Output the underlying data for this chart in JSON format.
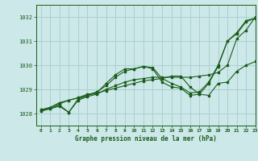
{
  "title": "Graphe pression niveau de la mer (hPa)",
  "bg_color": "#cce8e8",
  "grid_color": "#aad0d0",
  "line_color": "#1a5c1a",
  "xlim": [
    -0.5,
    23
  ],
  "ylim": [
    1027.5,
    1032.5
  ],
  "yticks": [
    1028,
    1029,
    1030,
    1031,
    1032
  ],
  "xticks": [
    0,
    1,
    2,
    3,
    4,
    5,
    6,
    7,
    8,
    9,
    10,
    11,
    12,
    13,
    14,
    15,
    16,
    17,
    18,
    19,
    20,
    21,
    22,
    23
  ],
  "lines": [
    {
      "x": [
        0,
        1,
        2,
        3,
        4,
        5,
        6,
        7,
        8,
        9,
        10,
        11,
        12,
        13,
        14,
        15,
        16,
        17,
        18,
        19,
        20,
        21,
        22,
        23
      ],
      "y": [
        1028.1,
        1028.2,
        1028.3,
        1028.05,
        1028.55,
        1028.7,
        1028.8,
        1029.0,
        1029.15,
        1029.3,
        1029.4,
        1029.45,
        1029.5,
        1029.5,
        1029.5,
        1029.5,
        1029.5,
        1029.55,
        1029.6,
        1029.7,
        1030.0,
        1031.1,
        1031.45,
        1032.0
      ]
    },
    {
      "x": [
        0,
        1,
        2,
        3,
        4,
        5,
        6,
        7,
        8,
        9,
        10,
        11,
        12,
        13,
        14,
        15,
        16,
        17,
        18,
        19,
        20,
        21,
        22,
        23
      ],
      "y": [
        1028.1,
        1028.2,
        1028.35,
        1028.05,
        1028.6,
        1028.75,
        1028.9,
        1029.15,
        1029.5,
        1029.75,
        1029.85,
        1029.95,
        1029.9,
        1029.45,
        1029.25,
        1029.1,
        1028.85,
        1028.9,
        1029.3,
        1030.0,
        1031.0,
        1031.35,
        1031.85,
        1031.95
      ]
    },
    {
      "x": [
        0,
        1,
        2,
        3,
        4,
        5,
        6,
        7,
        8,
        9,
        10,
        11,
        12,
        13,
        14,
        15,
        16,
        17,
        18,
        19,
        20,
        21,
        22,
        23
      ],
      "y": [
        1028.15,
        1028.25,
        1028.4,
        1028.55,
        1028.65,
        1028.75,
        1028.85,
        1028.95,
        1029.05,
        1029.15,
        1029.25,
        1029.35,
        1029.4,
        1029.45,
        1029.55,
        1029.55,
        1029.1,
        1028.8,
        1028.75,
        1029.25,
        1029.3,
        1029.75,
        1030.0,
        1030.15
      ]
    },
    {
      "x": [
        0,
        1,
        2,
        3,
        4,
        5,
        6,
        7,
        8,
        9,
        10,
        11,
        12,
        13,
        14,
        15,
        16,
        17,
        18,
        19,
        20,
        21,
        22,
        23
      ],
      "y": [
        1028.15,
        1028.25,
        1028.45,
        1028.55,
        1028.65,
        1028.8,
        1028.85,
        1029.25,
        1029.6,
        1029.85,
        1029.85,
        1029.95,
        1029.85,
        1029.3,
        1029.1,
        1029.05,
        1028.75,
        1028.8,
        1029.25,
        1029.95,
        1031.0,
        1031.3,
        1031.8,
        1031.95
      ]
    }
  ]
}
